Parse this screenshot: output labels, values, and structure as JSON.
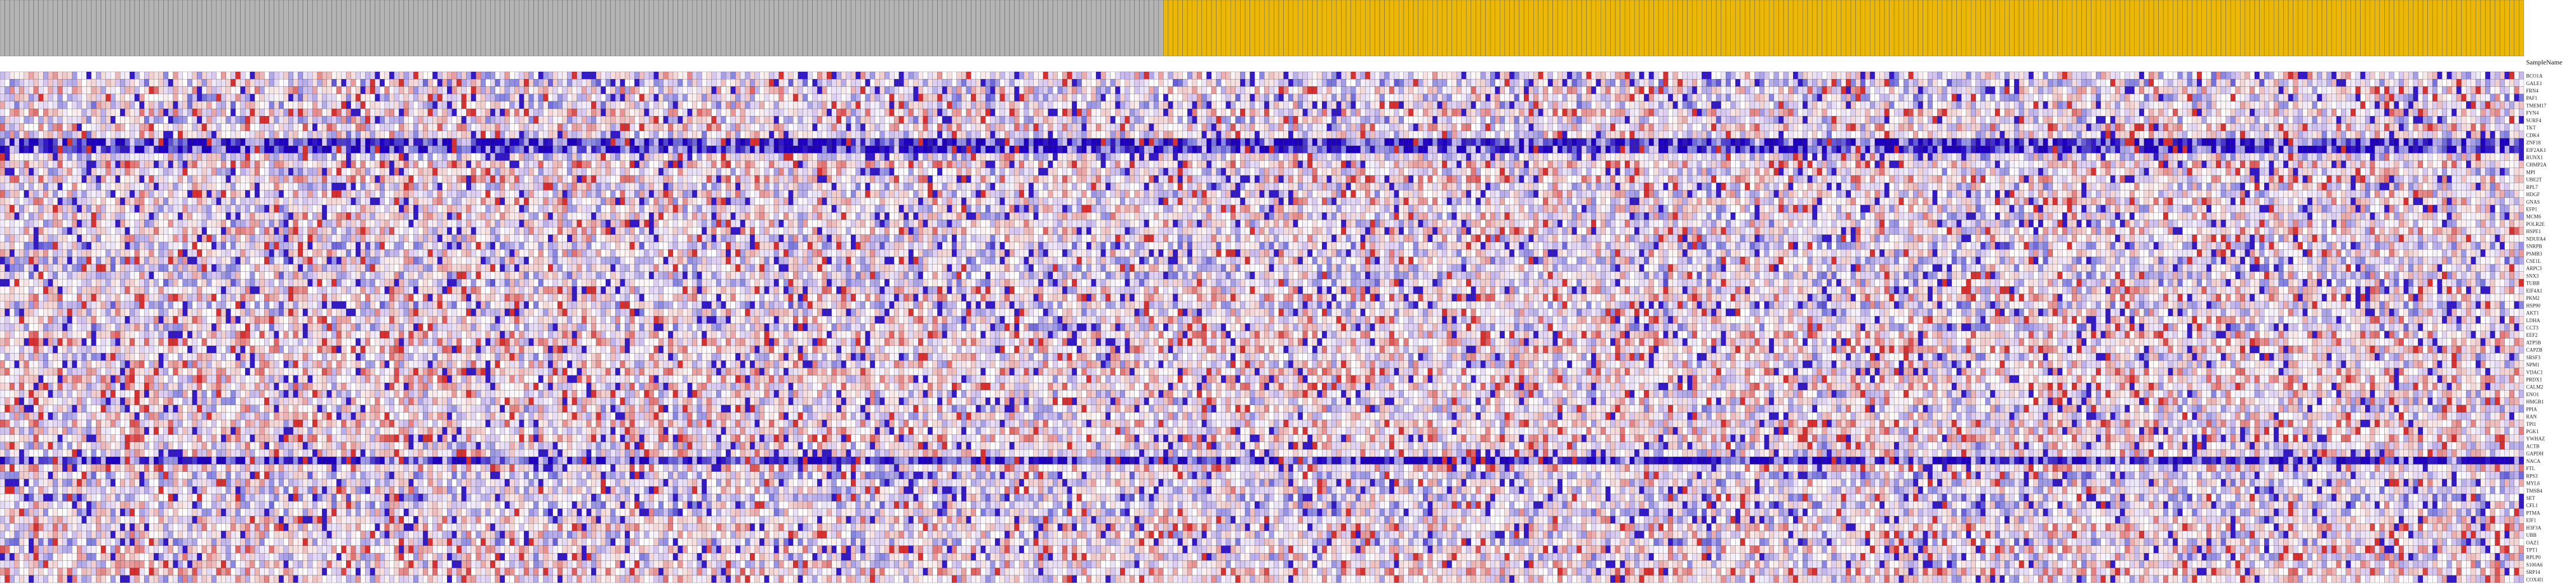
{
  "chart_data": {
    "type": "heatmap",
    "title": "",
    "column_header_title": "SampleName",
    "groups": [
      {
        "name": "",
        "color": "#b4b4b4",
        "count": 242
      },
      {
        "name": "",
        "color": "#ecb808",
        "count": 283
      }
    ],
    "n_columns": 525,
    "columns": [],
    "rows": [
      "BCO1A",
      "GALE1",
      "FRN4",
      "PAF1",
      "TMEM17",
      "FYN4",
      "SURF4",
      "TKT",
      "CDK4",
      "ZNF18",
      "EIF2AK1",
      "RUNX1",
      "CHMP2A",
      "MPI",
      "UBE2T",
      "RPL7",
      "HDGF",
      "GNAS",
      "EFP1",
      "MCM6",
      "POLR2E",
      "HSPE1",
      "NDUFA4",
      "SNRPB",
      "PSMB3",
      "CSE1L",
      "ARPC3",
      "SNX3",
      "TUBB",
      "EIF4A1",
      "PKM2",
      "HSP90",
      "AKT1",
      "LDHA",
      "CCT3",
      "EEF2",
      "ATP5B",
      "CAPZB",
      "SRSF3",
      "NPM1",
      "VDAC1",
      "PRDX1",
      "CALM2",
      "ENO1",
      "HMGB1",
      "PPIA",
      "RAN",
      "TPI1",
      "PGK1",
      "YWHAZ",
      "ACTB",
      "GAPDH",
      "NACA",
      "FTL",
      "RPS3",
      "MYL6",
      "TMSB4",
      "SET",
      "CFL1",
      "PTMA",
      "EIF1",
      "H3F3A",
      "UBB",
      "OAZ1",
      "TPT1",
      "RPLP0",
      "S100A6",
      "SRP14",
      "COX4I1"
    ],
    "value_range": [
      -3,
      3
    ],
    "color_scale": [
      "#2000c0",
      "#8080e0",
      "#d8c8f0",
      "#ffffff",
      "#f0c8c8",
      "#e06060",
      "#d01010"
    ],
    "grid": true,
    "legend": "none"
  }
}
